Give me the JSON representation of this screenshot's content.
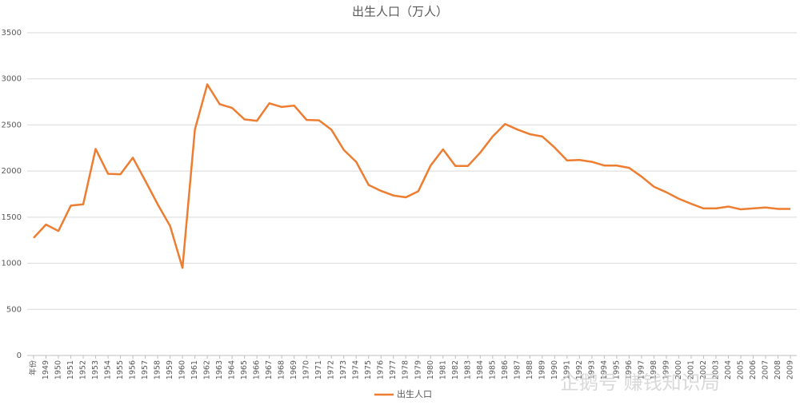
{
  "chart_data": {
    "type": "line",
    "title": "出生人口（万人）",
    "categories": [
      "年份",
      "1949",
      "1950",
      "1951",
      "1952",
      "1953",
      "1954",
      "1955",
      "1956",
      "1957",
      "1958",
      "1959",
      "1960",
      "1961",
      "1962",
      "1963",
      "1964",
      "1965",
      "1966",
      "1967",
      "1968",
      "1969",
      "1970",
      "1971",
      "1972",
      "1973",
      "1974",
      "1975",
      "1976",
      "1977",
      "1978",
      "1979",
      "1980",
      "1981",
      "1982",
      "1983",
      "1984",
      "1985",
      "1986",
      "1987",
      "1988",
      "1989",
      "1990",
      "1991",
      "1992",
      "1993",
      "1994",
      "1995",
      "1996",
      "1997",
      "1998",
      "1999",
      "2000",
      "2001",
      "2002",
      "2003",
      "2004",
      "2005",
      "2006",
      "2007",
      "2008",
      "2009"
    ],
    "series": [
      {
        "name": "出生人口",
        "color": "#ed7d31",
        "values": [
          1275,
          1420,
          1350,
          1625,
          1640,
          2240,
          1970,
          1965,
          2145,
          1895,
          1640,
          1405,
          950,
          2450,
          2940,
          2725,
          2685,
          2560,
          2545,
          2735,
          2695,
          2710,
          2555,
          2550,
          2450,
          2230,
          2100,
          1850,
          1785,
          1735,
          1715,
          1780,
          2060,
          2235,
          2055,
          2055,
          2200,
          2375,
          2510,
          2450,
          2400,
          2375,
          2255,
          2115,
          2120,
          2100,
          2060,
          2060,
          2035,
          1940,
          1830,
          1770,
          1700,
          1645,
          1595,
          1595,
          1615,
          1585,
          1595,
          1605,
          1590,
          1590
        ]
      }
    ],
    "ylim": [
      0,
      3500
    ],
    "yticks": [
      0,
      500,
      1000,
      1500,
      2000,
      2500,
      3000,
      3500
    ],
    "grid": true,
    "legend": "bottom",
    "watermark": "企鹅号 赚钱知识局"
  }
}
